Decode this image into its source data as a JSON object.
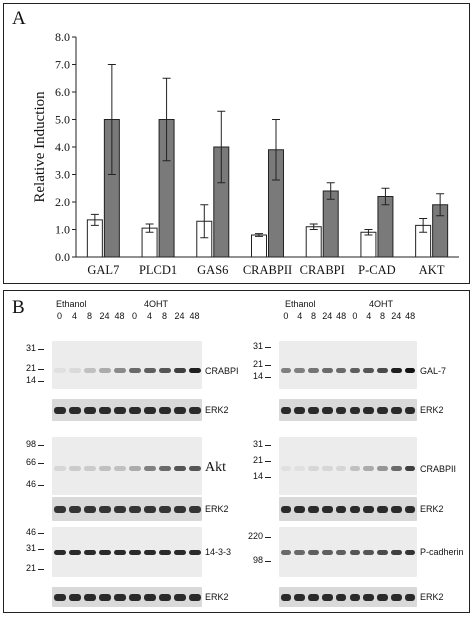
{
  "panelA": {
    "letter": "A",
    "chart_data": {
      "type": "bar",
      "categories": [
        "GAL7",
        "PLCD1",
        "GAS6",
        "CRABPII",
        "CRABPI",
        "P-CAD",
        "AKT"
      ],
      "series": [
        {
          "color": "#ffffff",
          "values": [
            1.35,
            1.05,
            1.3,
            0.8,
            1.1,
            0.9,
            1.15
          ],
          "errors": [
            0.2,
            0.15,
            0.6,
            0.05,
            0.1,
            0.1,
            0.25
          ]
        },
        {
          "color": "#7a7a7a",
          "values": [
            5.0,
            5.0,
            4.0,
            3.9,
            2.4,
            2.2,
            1.9
          ],
          "errors": [
            2.0,
            1.5,
            1.3,
            1.1,
            0.3,
            0.3,
            0.4
          ]
        }
      ],
      "ylabel": "Relative Induction",
      "ylim": [
        0,
        8
      ],
      "yticks": [
        "0.0",
        "1.0",
        "2.0",
        "3.0",
        "4.0",
        "5.0",
        "6.0",
        "7.0",
        "8.0"
      ]
    }
  },
  "panelB": {
    "letter": "B",
    "left": {
      "ethanol": "Ethanol",
      "treatment": "4OHT",
      "lanes": [
        "0",
        "4",
        "8",
        "24",
        "48",
        "0",
        "4",
        "8",
        "24",
        "48"
      ],
      "blots": [
        {
          "label": "CRABPI",
          "markers": [
            "31",
            "21",
            "14"
          ],
          "intensity": [
            0.05,
            0.08,
            0.2,
            0.3,
            0.45,
            0.6,
            0.65,
            0.7,
            0.8,
            0.95
          ]
        },
        {
          "label": "ERK2",
          "markers": [],
          "intensity": [
            0.9,
            0.9,
            0.9,
            0.9,
            0.9,
            0.9,
            0.9,
            0.9,
            0.9,
            0.9
          ]
        },
        {
          "label": "Akt",
          "markers": [
            "98",
            "66",
            "46"
          ],
          "intensity": [
            0.1,
            0.15,
            0.15,
            0.2,
            0.2,
            0.3,
            0.5,
            0.6,
            0.7,
            0.7
          ]
        },
        {
          "label": "ERK2",
          "markers": [],
          "intensity": [
            0.85,
            0.85,
            0.85,
            0.85,
            0.85,
            0.85,
            0.85,
            0.85,
            0.85,
            0.85
          ]
        },
        {
          "label": "14-3-3",
          "markers": [
            "46",
            "31",
            "21"
          ],
          "intensity": [
            0.9,
            0.9,
            0.9,
            0.9,
            0.9,
            0.9,
            0.9,
            0.9,
            0.9,
            0.9
          ]
        },
        {
          "label": "ERK2",
          "markers": [],
          "intensity": [
            0.9,
            0.9,
            0.9,
            0.9,
            0.9,
            0.9,
            0.9,
            0.9,
            0.9,
            0.9
          ]
        }
      ]
    },
    "right": {
      "ethanol": "Ethanol",
      "treatment": "4OHT",
      "lanes": [
        "0",
        "4",
        "8",
        "24",
        "48",
        "0",
        "4",
        "8",
        "24",
        "48"
      ],
      "blots": [
        {
          "label": "GAL-7",
          "markers": [
            "31",
            "21",
            "14"
          ],
          "intensity": [
            0.5,
            0.5,
            0.55,
            0.6,
            0.6,
            0.65,
            0.7,
            0.75,
            0.95,
            1.0
          ]
        },
        {
          "label": "ERK2",
          "markers": [],
          "intensity": [
            0.9,
            0.9,
            0.9,
            0.9,
            0.9,
            0.9,
            0.9,
            0.9,
            0.9,
            0.9
          ]
        },
        {
          "label": "CRABPII",
          "markers": [
            "31",
            "21",
            "14"
          ],
          "intensity": [
            0.05,
            0.05,
            0.1,
            0.1,
            0.1,
            0.2,
            0.3,
            0.4,
            0.6,
            0.8
          ]
        },
        {
          "label": "ERK2",
          "markers": [],
          "intensity": [
            0.9,
            0.9,
            0.9,
            0.9,
            0.9,
            0.9,
            0.9,
            0.9,
            0.9,
            0.9
          ]
        },
        {
          "label": "P-cadherin",
          "markers": [
            "220",
            "98"
          ],
          "intensity": [
            0.6,
            0.6,
            0.65,
            0.65,
            0.65,
            0.7,
            0.7,
            0.75,
            0.8,
            0.85
          ]
        },
        {
          "label": "ERK2",
          "markers": [],
          "intensity": [
            0.9,
            0.9,
            0.9,
            0.9,
            0.9,
            0.9,
            0.9,
            0.9,
            0.9,
            0.9
          ]
        }
      ]
    }
  }
}
